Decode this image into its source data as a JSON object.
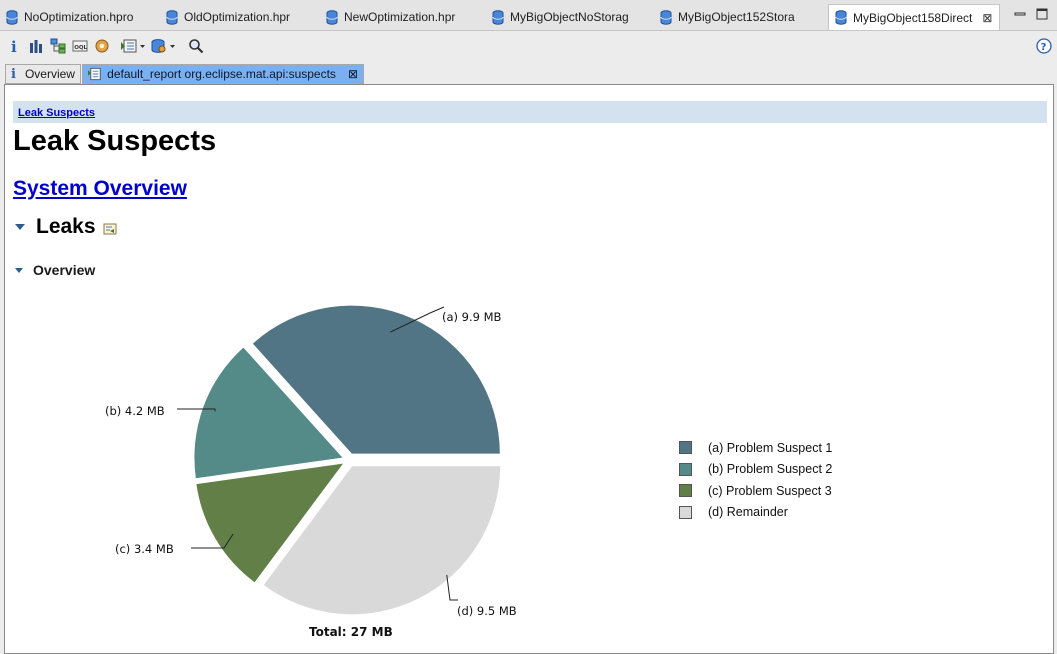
{
  "editor_tabs": [
    {
      "label": "NoOptimization.hpro"
    },
    {
      "label": "OldOptimization.hpr"
    },
    {
      "label": "NewOptimization.hpr"
    },
    {
      "label": "MyBigObjectNoStorag"
    },
    {
      "label": "MyBigObject152Stora"
    },
    {
      "label": "MyBigObject158Direct",
      "active": true
    }
  ],
  "toolbar_icons": [
    "info-icon",
    "histogram-icon",
    "dominator-tree-icon",
    "oql-icon",
    "thread-overview-icon",
    "heap-dump-overview-icon",
    "query-browser-icon",
    "search-icon",
    "help-icon"
  ],
  "inner_tabs": {
    "overview": "Overview",
    "report": "default_report  org.eclipse.mat.api:suspects"
  },
  "page": {
    "breadcrumb": "Leak Suspects",
    "title": "Leak Suspects",
    "system_overview_link": "System Overview",
    "leaks_heading": "Leaks",
    "overview_heading": "Overview"
  },
  "chart_data": {
    "type": "pie",
    "total_label": "Total: 27 MB",
    "slices": [
      {
        "key": "(a)",
        "value_mb": 9.9,
        "label": "(a)  9.9 MB",
        "legend": "(a)  Problem Suspect 1",
        "color": "#527585"
      },
      {
        "key": "(b)",
        "value_mb": 4.2,
        "label": "(b)  4.2 MB",
        "legend": "(b)  Problem Suspect 2",
        "color": "#548a87"
      },
      {
        "key": "(c)",
        "value_mb": 3.4,
        "label": "(c)  3.4 MB",
        "legend": "(c)  Problem Suspect 3",
        "color": "#637f48"
      },
      {
        "key": "(d)",
        "value_mb": 9.5,
        "label": "(d)  9.5 MB",
        "legend": "(d)  Remainder",
        "color": "#d9d9d9"
      }
    ]
  }
}
